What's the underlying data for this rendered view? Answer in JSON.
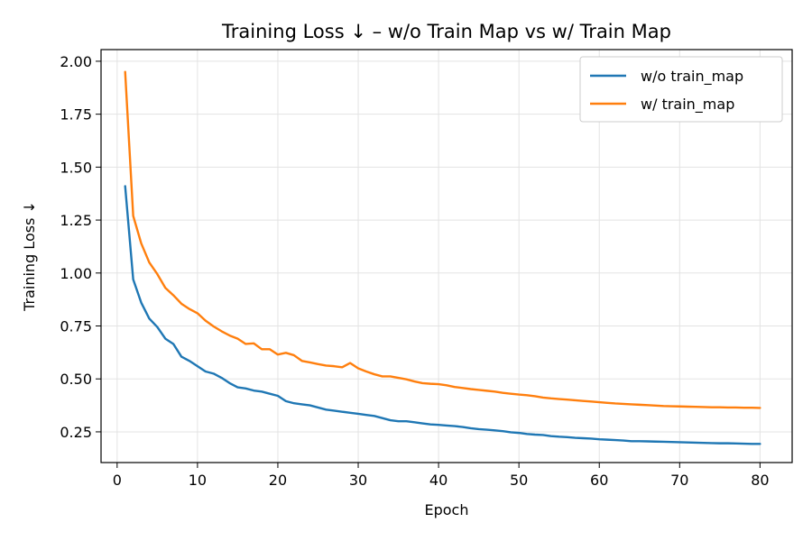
{
  "chart_data": {
    "type": "line",
    "title": "Training Loss ↓ – w/o Train Map vs  w/ Train Map",
    "xlabel": "Epoch",
    "ylabel": "Training Loss ↓",
    "xlim": [
      -2,
      84
    ],
    "ylim": [
      0.105,
      2.055
    ],
    "xticks": [
      0,
      10,
      20,
      30,
      40,
      50,
      60,
      70,
      80
    ],
    "yticks": [
      0.25,
      0.5,
      0.75,
      1.0,
      1.25,
      1.5,
      1.75,
      2.0
    ],
    "ytick_labels": [
      "0.25",
      "0.50",
      "0.75",
      "1.00",
      "1.25",
      "1.50",
      "1.75",
      "2.00"
    ],
    "grid": true,
    "legend_position": "top-right",
    "x": [
      1,
      2,
      3,
      4,
      5,
      6,
      7,
      8,
      9,
      10,
      11,
      12,
      13,
      14,
      15,
      16,
      17,
      18,
      19,
      20,
      21,
      22,
      23,
      24,
      25,
      26,
      27,
      28,
      29,
      30,
      31,
      32,
      33,
      34,
      35,
      36,
      37,
      38,
      39,
      40,
      41,
      42,
      43,
      44,
      45,
      46,
      47,
      48,
      49,
      50,
      51,
      52,
      53,
      54,
      55,
      56,
      57,
      58,
      59,
      60,
      61,
      62,
      63,
      64,
      65,
      66,
      67,
      68,
      69,
      70,
      71,
      72,
      73,
      74,
      75,
      76,
      77,
      78,
      79,
      80
    ],
    "series": [
      {
        "name": "w/o train_map",
        "color": "#1f77b4",
        "values": [
          1.41,
          0.97,
          0.86,
          0.785,
          0.745,
          0.69,
          0.665,
          0.605,
          0.585,
          0.56,
          0.535,
          0.525,
          0.505,
          0.48,
          0.46,
          0.455,
          0.445,
          0.44,
          0.43,
          0.42,
          0.395,
          0.385,
          0.38,
          0.375,
          0.365,
          0.355,
          0.35,
          0.345,
          0.34,
          0.335,
          0.33,
          0.325,
          0.315,
          0.305,
          0.3,
          0.3,
          0.295,
          0.29,
          0.285,
          0.283,
          0.28,
          0.277,
          0.273,
          0.267,
          0.263,
          0.26,
          0.257,
          0.253,
          0.248,
          0.245,
          0.24,
          0.237,
          0.235,
          0.23,
          0.227,
          0.225,
          0.222,
          0.22,
          0.218,
          0.215,
          0.213,
          0.211,
          0.209,
          0.206,
          0.206,
          0.205,
          0.204,
          0.203,
          0.202,
          0.201,
          0.2,
          0.199,
          0.198,
          0.197,
          0.196,
          0.196,
          0.195,
          0.194,
          0.193,
          0.193
        ]
      },
      {
        "name": "w/ train_map",
        "color": "#ff7f0e",
        "values": [
          1.95,
          1.27,
          1.14,
          1.05,
          0.995,
          0.93,
          0.895,
          0.855,
          0.83,
          0.81,
          0.775,
          0.748,
          0.725,
          0.705,
          0.69,
          0.665,
          0.668,
          0.64,
          0.64,
          0.615,
          0.623,
          0.612,
          0.585,
          0.578,
          0.57,
          0.563,
          0.56,
          0.555,
          0.575,
          0.55,
          0.535,
          0.522,
          0.512,
          0.512,
          0.505,
          0.498,
          0.488,
          0.48,
          0.477,
          0.475,
          0.47,
          0.462,
          0.457,
          0.452,
          0.448,
          0.444,
          0.44,
          0.434,
          0.43,
          0.426,
          0.423,
          0.418,
          0.412,
          0.408,
          0.405,
          0.402,
          0.399,
          0.396,
          0.393,
          0.39,
          0.387,
          0.384,
          0.382,
          0.38,
          0.378,
          0.376,
          0.374,
          0.372,
          0.371,
          0.37,
          0.369,
          0.368,
          0.367,
          0.366,
          0.366,
          0.365,
          0.365,
          0.364,
          0.364,
          0.363
        ]
      }
    ]
  }
}
